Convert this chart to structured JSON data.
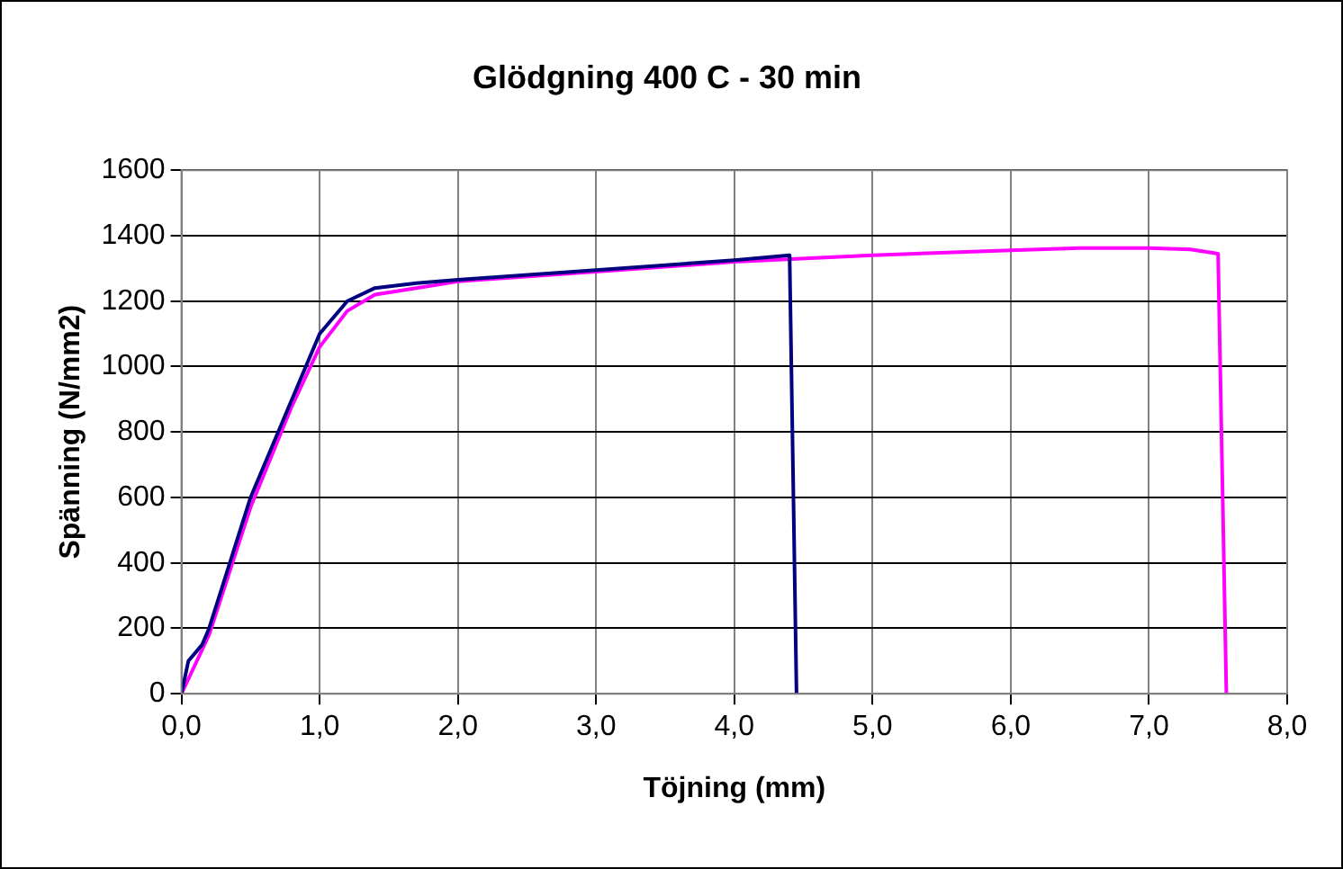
{
  "chart_data": {
    "type": "line",
    "title": "Glödgning 400 C - 30 min",
    "xlabel": "Töjning (mm)",
    "ylabel": "Spänning (N/mm2)",
    "xlim": [
      0,
      8
    ],
    "xticks": [
      {
        "value": 0,
        "label": "0,0"
      },
      {
        "value": 1,
        "label": "1,0"
      },
      {
        "value": 2,
        "label": "2,0"
      },
      {
        "value": 3,
        "label": "3,0"
      },
      {
        "value": 4,
        "label": "4,0"
      },
      {
        "value": 5,
        "label": "5,0"
      },
      {
        "value": 6,
        "label": "6,0"
      },
      {
        "value": 7,
        "label": "7,0"
      },
      {
        "value": 8,
        "label": "8,0"
      }
    ],
    "ylim": [
      0,
      1600
    ],
    "yticks": [
      0,
      200,
      400,
      600,
      800,
      1000,
      1200,
      1400,
      1600
    ],
    "grid": true,
    "legend": false,
    "marker": "none",
    "line_style": "solid",
    "series": [
      {
        "color": "#000080",
        "x": [
          0,
          0.05,
          0.15,
          0.2,
          0.5,
          0.8,
          1.0,
          1.2,
          1.4,
          1.7,
          2.0,
          3.0,
          4.0,
          4.4,
          4.45
        ],
        "values": [
          0,
          100,
          150,
          200,
          600,
          900,
          1100,
          1200,
          1240,
          1255,
          1265,
          1295,
          1325,
          1340,
          0
        ]
      },
      {
        "color": "#ff00ff",
        "x": [
          0,
          0.2,
          0.5,
          0.8,
          1.0,
          1.2,
          1.4,
          1.7,
          2.0,
          3.0,
          4.0,
          5.0,
          6.0,
          6.5,
          7.0,
          7.3,
          7.5,
          7.56
        ],
        "values": [
          0,
          180,
          570,
          880,
          1060,
          1170,
          1220,
          1240,
          1260,
          1290,
          1320,
          1340,
          1355,
          1362,
          1362,
          1358,
          1345,
          0
        ]
      }
    ]
  }
}
